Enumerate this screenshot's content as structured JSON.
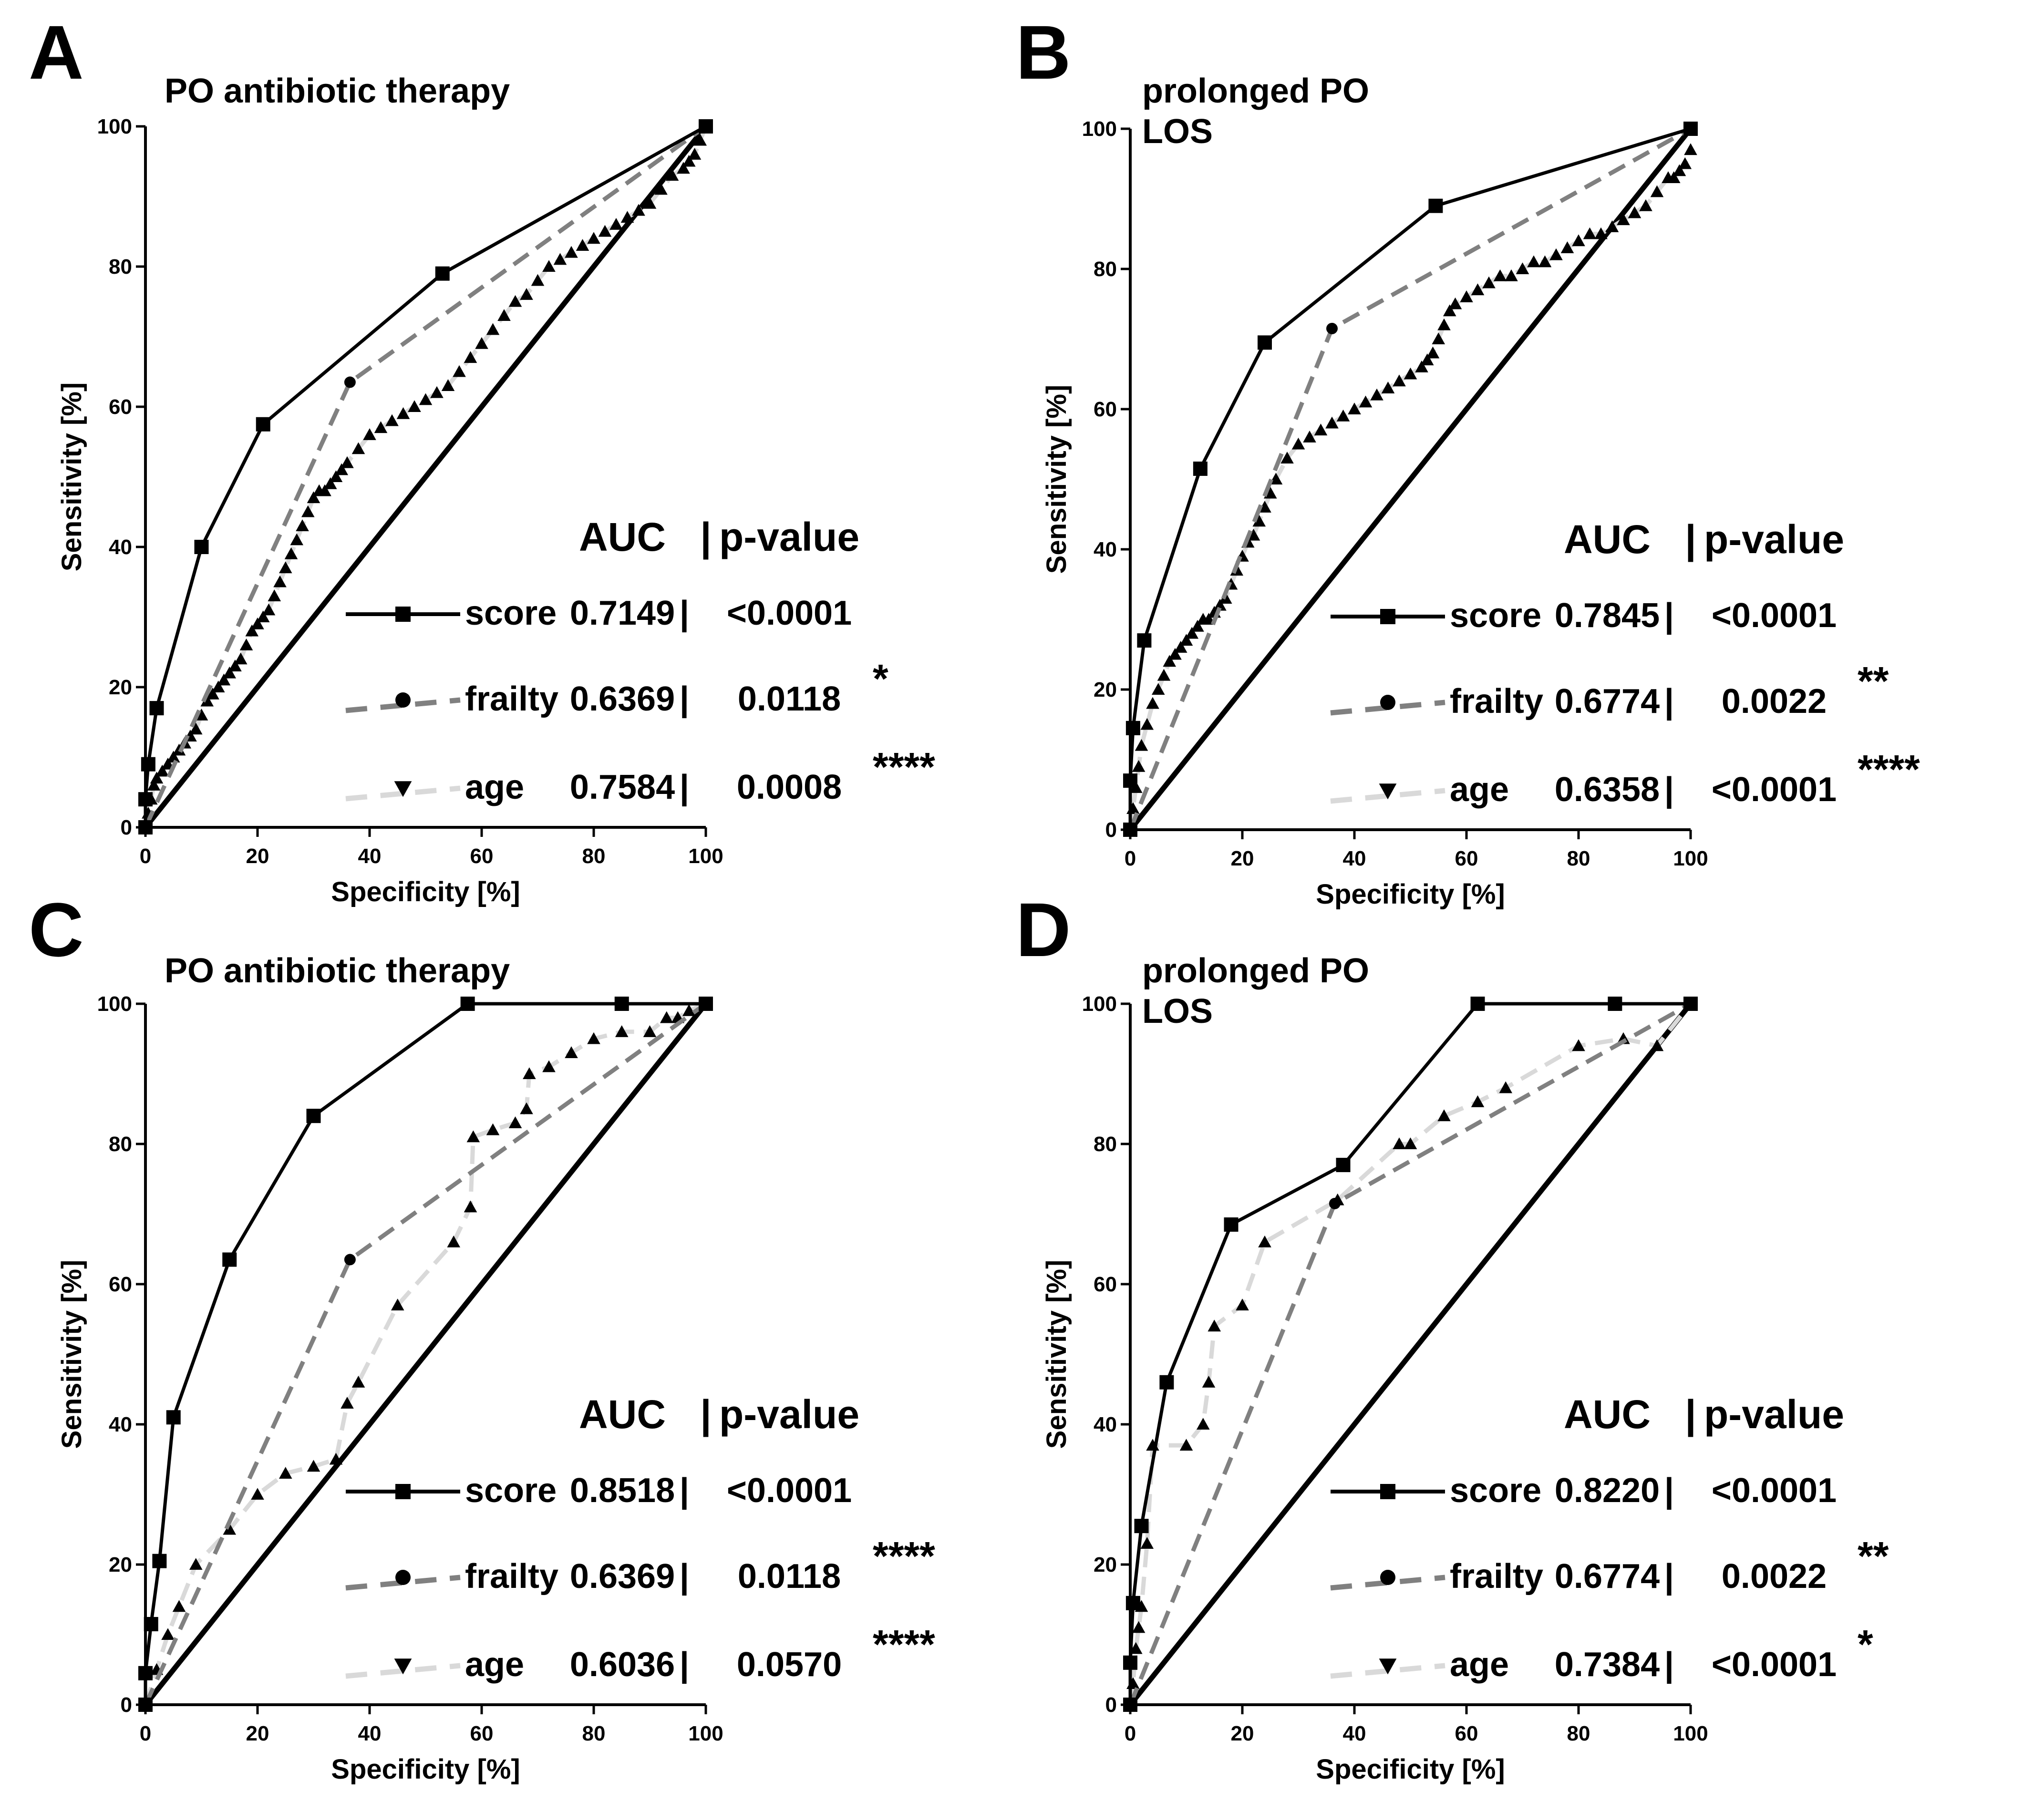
{
  "figure": {
    "legend_header": {
      "auc": "AUC",
      "sep": "|",
      "pvalue": "p-value"
    },
    "series_style": {
      "score": {
        "color": "#000000",
        "marker": "square-icon",
        "dash": "solid"
      },
      "frailty": {
        "color": "#808080",
        "marker": "circle-icon",
        "dash": "dashed"
      },
      "age": {
        "color": "#d9d9d9",
        "marker": "triangle-icon",
        "dash": "dashed",
        "point_color": "#000000"
      },
      "reference": {
        "color": "#000000"
      }
    }
  },
  "chart_data": [
    {
      "type": "line",
      "panel": "A",
      "title": [
        "PO antibiotic therapy"
      ],
      "xlabel": "Specificity [%]",
      "ylabel": "Sensitivity [%]",
      "xlim": [
        0,
        100
      ],
      "ylim": [
        0,
        100
      ],
      "xticks": [
        "0",
        "20",
        "40",
        "60",
        "80",
        "100"
      ],
      "yticks": [
        "0",
        "20",
        "40",
        "60",
        "80",
        "100"
      ],
      "legend": [
        {
          "key": "score",
          "name": "score",
          "auc": "0.7149",
          "sep": "|",
          "pvalue": "<0.0001",
          "stars": ""
        },
        {
          "key": "frailty",
          "name": "frailty",
          "auc": "0.6369",
          "sep": "|",
          "pvalue": "0.0118",
          "stars": "*"
        },
        {
          "key": "age",
          "name": "age",
          "auc": "0.7584",
          "sep": "|",
          "pvalue": "0.0008",
          "stars": "****"
        }
      ],
      "series": [
        {
          "key": "score",
          "name": "score",
          "x": [
            0,
            0,
            0.5,
            2,
            10,
            21,
            53,
            100
          ],
          "y": [
            0,
            4,
            9,
            17,
            40,
            57.5,
            79,
            100
          ]
        },
        {
          "key": "frailty",
          "name": "frailty",
          "x": [
            0,
            36.5,
            100
          ],
          "y": [
            0,
            63.5,
            100
          ]
        },
        {
          "key": "age",
          "name": "age",
          "x": [
            0,
            0.5,
            1,
            1.5,
            2,
            3,
            4,
            5,
            6,
            7,
            8,
            9,
            10,
            11,
            12,
            13,
            14,
            15,
            16,
            17,
            18,
            19,
            20,
            21,
            22,
            23,
            24,
            25,
            26,
            27,
            28,
            29,
            30,
            31,
            32,
            33,
            34,
            35,
            36,
            38,
            40,
            42,
            44,
            46,
            48,
            50,
            52,
            54,
            56,
            58,
            60,
            62,
            64,
            66,
            68,
            70,
            72,
            74,
            76,
            78,
            80,
            82,
            84,
            86,
            88,
            90,
            92,
            94,
            96,
            97,
            98,
            99,
            100
          ],
          "y": [
            0,
            2,
            4,
            6,
            7,
            8,
            9,
            10,
            11,
            12,
            13,
            14,
            16,
            18,
            19,
            20,
            21,
            22,
            23,
            24,
            26,
            28,
            29,
            30,
            31,
            33,
            35,
            37,
            39,
            41,
            43,
            45,
            47,
            48,
            48,
            49,
            50,
            51,
            52,
            54,
            56,
            57,
            58,
            59,
            60,
            61,
            62,
            63,
            65,
            67,
            69,
            71,
            73,
            75,
            76,
            78,
            80,
            81,
            82,
            83,
            84,
            85,
            86,
            87,
            88,
            89,
            91,
            93,
            94,
            95,
            96,
            98,
            100
          ]
        }
      ]
    },
    {
      "type": "line",
      "panel": "B",
      "title": [
        "prolonged PO",
        "LOS"
      ],
      "xlabel": "Specificity [%]",
      "ylabel": "Sensitivity [%]",
      "xlim": [
        0,
        100
      ],
      "ylim": [
        0,
        100
      ],
      "xticks": [
        "0",
        "20",
        "40",
        "60",
        "80",
        "100"
      ],
      "yticks": [
        "0",
        "20",
        "40",
        "60",
        "80",
        "100"
      ],
      "legend": [
        {
          "key": "score",
          "name": "score",
          "auc": "0.7845",
          "sep": "|",
          "pvalue": "<0.0001",
          "stars": ""
        },
        {
          "key": "frailty",
          "name": "frailty",
          "auc": "0.6774",
          "sep": "|",
          "pvalue": "0.0022",
          "stars": "**"
        },
        {
          "key": "age",
          "name": "age",
          "auc": "0.6358",
          "sep": "|",
          "pvalue": "<0.0001",
          "stars": "****"
        }
      ],
      "series": [
        {
          "key": "score",
          "name": "score",
          "x": [
            0,
            0,
            0.5,
            2.5,
            12.5,
            24,
            54.5,
            100
          ],
          "y": [
            0,
            7,
            14.5,
            27,
            51.5,
            69.5,
            89,
            100
          ]
        },
        {
          "key": "frailty",
          "name": "frailty",
          "x": [
            0,
            36,
            100
          ],
          "y": [
            0,
            71.5,
            100
          ]
        },
        {
          "key": "age",
          "name": "age",
          "x": [
            0,
            0.5,
            1,
            1.5,
            2,
            3,
            4,
            5,
            6,
            7,
            8,
            9,
            10,
            11,
            12,
            13,
            14,
            15,
            16,
            17,
            18,
            19,
            20,
            21,
            22,
            23,
            24,
            25,
            26,
            28,
            30,
            32,
            34,
            36,
            38,
            40,
            42,
            44,
            46,
            48,
            50,
            52,
            53,
            54,
            55,
            56,
            57,
            58,
            60,
            62,
            64,
            66,
            68,
            70,
            72,
            74,
            76,
            78,
            80,
            82,
            84,
            86,
            88,
            90,
            92,
            94,
            96,
            97,
            98,
            99,
            100
          ],
          "y": [
            0,
            3,
            6,
            9,
            12,
            15,
            18,
            20,
            22,
            24,
            25,
            26,
            27,
            28,
            29,
            30,
            30,
            31,
            32,
            33,
            35,
            37,
            39,
            41,
            42,
            44,
            46,
            48,
            50,
            53,
            55,
            56,
            57,
            58,
            59,
            60,
            61,
            62,
            63,
            64,
            65,
            66,
            67,
            68,
            70,
            72,
            74,
            75,
            76,
            77,
            78,
            79,
            79,
            80,
            81,
            81,
            82,
            83,
            84,
            85,
            85,
            86,
            87,
            88,
            89,
            91,
            93,
            93,
            94,
            95,
            97
          ]
        }
      ]
    },
    {
      "type": "line",
      "panel": "C",
      "title": [
        "PO antibiotic therapy"
      ],
      "xlabel": "Specificity [%]",
      "ylabel": "Sensitivity [%]",
      "xlim": [
        0,
        100
      ],
      "ylim": [
        0,
        100
      ],
      "xticks": [
        "0",
        "20",
        "40",
        "60",
        "80",
        "100"
      ],
      "yticks": [
        "0",
        "20",
        "40",
        "60",
        "80",
        "100"
      ],
      "legend": [
        {
          "key": "score",
          "name": "score",
          "auc": "0.8518",
          "sep": "|",
          "pvalue": "<0.0001",
          "stars": ""
        },
        {
          "key": "frailty",
          "name": "frailty",
          "auc": "0.6369",
          "sep": "|",
          "pvalue": "0.0118",
          "stars": "****"
        },
        {
          "key": "age",
          "name": "age",
          "auc": "0.6036",
          "sep": "|",
          "pvalue": "0.0570",
          "stars": "****"
        }
      ],
      "series": [
        {
          "key": "score",
          "name": "score",
          "x": [
            0,
            0,
            1,
            2.5,
            5,
            15,
            30,
            57.5,
            85,
            100
          ],
          "y": [
            0,
            4.5,
            11.5,
            20.5,
            41,
            63.5,
            84,
            100,
            100,
            100
          ]
        },
        {
          "key": "frailty",
          "name": "frailty",
          "x": [
            0,
            36.5,
            100
          ],
          "y": [
            0,
            63.5,
            100
          ]
        },
        {
          "key": "age",
          "name": "age",
          "x": [
            0,
            2,
            4,
            6,
            9,
            15,
            20,
            25,
            30,
            34,
            36,
            38,
            45,
            55,
            58,
            58.5,
            62,
            66,
            68,
            68.5,
            72,
            76,
            80,
            85,
            90,
            93,
            95,
            97,
            100
          ],
          "y": [
            0,
            5,
            10,
            14,
            20,
            25,
            30,
            33,
            34,
            35,
            43,
            46,
            57,
            66,
            71,
            81,
            82,
            83,
            85,
            90,
            91,
            93,
            95,
            96,
            96,
            98,
            98,
            99,
            100
          ]
        }
      ]
    },
    {
      "type": "line",
      "panel": "D",
      "title": [
        "prolonged PO",
        "LOS"
      ],
      "xlabel": "Specificity [%]",
      "ylabel": "Sensitivity [%]",
      "xlim": [
        0,
        100
      ],
      "ylim": [
        0,
        100
      ],
      "xticks": [
        "0",
        "20",
        "40",
        "60",
        "80",
        "100"
      ],
      "yticks": [
        "0",
        "20",
        "40",
        "60",
        "80",
        "100"
      ],
      "legend": [
        {
          "key": "score",
          "name": "score",
          "auc": "0.8220",
          "sep": "|",
          "pvalue": "<0.0001",
          "stars": ""
        },
        {
          "key": "frailty",
          "name": "frailty",
          "auc": "0.6774",
          "sep": "|",
          "pvalue": "0.0022",
          "stars": "**"
        },
        {
          "key": "age",
          "name": "age",
          "auc": "0.7384",
          "sep": "|",
          "pvalue": "<0.0001",
          "stars": "*"
        }
      ],
      "series": [
        {
          "key": "score",
          "name": "score",
          "x": [
            0,
            0,
            0.5,
            2,
            6.5,
            18,
            38,
            62,
            86.5,
            100
          ],
          "y": [
            0,
            6,
            14.5,
            25.5,
            46,
            68.5,
            77,
            100,
            100,
            100
          ]
        },
        {
          "key": "frailty",
          "name": "frailty",
          "x": [
            0,
            36.5,
            100
          ],
          "y": [
            0,
            71.5,
            100
          ]
        },
        {
          "key": "age",
          "name": "age",
          "x": [
            0,
            0.5,
            1,
            1.5,
            2,
            3,
            4,
            10,
            13,
            14,
            15,
            20,
            24,
            37,
            48,
            50,
            56,
            62,
            67,
            80,
            88,
            94,
            100
          ],
          "y": [
            0,
            3,
            8,
            11,
            14,
            23,
            37,
            37,
            40,
            46,
            54,
            57,
            66,
            72,
            80,
            80,
            84,
            86,
            88,
            94,
            95,
            94,
            100
          ]
        }
      ]
    }
  ]
}
